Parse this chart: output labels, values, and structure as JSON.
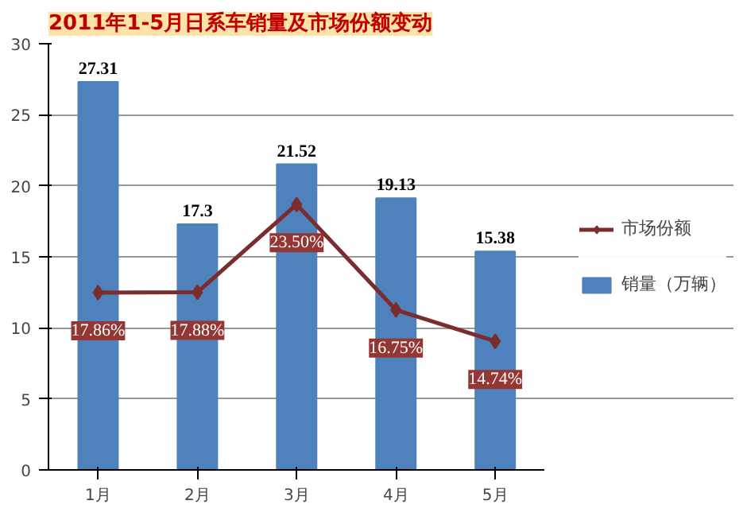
{
  "chart_data": {
    "type": "bar",
    "title": "2011年1-5月日系车销量及市场份额变动",
    "categories": [
      "1月",
      "2月",
      "3月",
      "4月",
      "5月"
    ],
    "ylim": [
      0,
      30
    ],
    "yticks": [
      0,
      5,
      10,
      15,
      20,
      25,
      30
    ],
    "y2lim": [
      6.5,
      33.8
    ],
    "grid": "y",
    "legend": "right",
    "data_labels": true,
    "tick_labels": "xy",
    "series": [
      {
        "name": "销量（万辆）",
        "color": "#4f81bd",
        "values": [
          27.31,
          17.3,
          21.52,
          19.13,
          15.38
        ]
      },
      {
        "name": "市场份额",
        "type": "line",
        "axis": "y2",
        "color": "#7b2c2c",
        "marker": "diamond",
        "values": [
          17.86,
          17.88,
          23.5,
          16.75,
          14.74
        ],
        "value_labels": [
          "17.86%",
          "17.88%",
          "23.50%",
          "16.75%",
          "14.74%"
        ]
      }
    ]
  }
}
